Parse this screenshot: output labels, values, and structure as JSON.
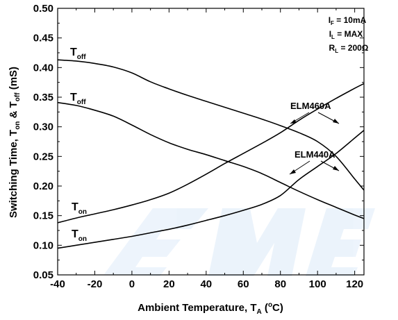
{
  "chart_data": {
    "type": "line",
    "xlabel": "Ambient Temperature, T",
    "xlabel_sub": "A",
    "xlabel_unit_pre": " (",
    "xlabel_unit_sup": "o",
    "xlabel_unit_post": "C)",
    "ylabel_parts": [
      "Switching Time, T",
      "on",
      " & T",
      "off",
      " (mS)"
    ],
    "xlim": [
      -40,
      125
    ],
    "ylim": [
      0.05,
      0.5
    ],
    "x_ticks": [
      "-40",
      "-20",
      "0",
      "20",
      "40",
      "60",
      "80",
      "100",
      "120"
    ],
    "y_ticks": [
      "0.05",
      "0.10",
      "0.15",
      "0.20",
      "0.25",
      "0.30",
      "0.35",
      "0.40",
      "0.45",
      "0.50"
    ],
    "grid": false,
    "conditions": [
      {
        "main": "I",
        "sub": "F",
        "rest": " = 10mA"
      },
      {
        "main": "I",
        "sub": "L",
        "rest": " = MAX"
      },
      {
        "main": "R",
        "sub": "L",
        "rest": " = 200Ω"
      }
    ],
    "annotations": [
      "ELM460A",
      "ELM440A"
    ],
    "curve_labels": [
      {
        "main": "T",
        "sub": "off"
      },
      {
        "main": "T",
        "sub": "off"
      },
      {
        "main": "T",
        "sub": "on"
      },
      {
        "main": "T",
        "sub": "on"
      }
    ],
    "series": [
      {
        "x": [
          -40,
          -30,
          -20,
          -10,
          0,
          10,
          20,
          30,
          40,
          50,
          60,
          70,
          80,
          90,
          100,
          110,
          120,
          125
        ],
        "y": [
          0.413,
          0.411,
          0.407,
          0.401,
          0.391,
          0.376,
          0.364,
          0.353,
          0.343,
          0.333,
          0.323,
          0.313,
          0.302,
          0.29,
          0.275,
          0.25,
          0.212,
          0.193
        ]
      },
      {
        "x": [
          -40,
          -30,
          -20,
          -10,
          0,
          10,
          20,
          30,
          40,
          50,
          60,
          70,
          80,
          90,
          100,
          110,
          120,
          125
        ],
        "y": [
          0.341,
          0.336,
          0.328,
          0.318,
          0.303,
          0.287,
          0.273,
          0.262,
          0.253,
          0.243,
          0.233,
          0.221,
          0.206,
          0.191,
          0.177,
          0.164,
          0.151,
          0.145
        ]
      },
      {
        "x": [
          -40,
          -30,
          -20,
          -10,
          0,
          10,
          20,
          30,
          40,
          50,
          60,
          70,
          80,
          90,
          100,
          110,
          120,
          125
        ],
        "y": [
          0.138,
          0.146,
          0.153,
          0.16,
          0.168,
          0.177,
          0.188,
          0.203,
          0.22,
          0.238,
          0.255,
          0.272,
          0.29,
          0.311,
          0.33,
          0.348,
          0.365,
          0.373
        ]
      },
      {
        "x": [
          -40,
          -30,
          -20,
          -10,
          0,
          10,
          20,
          30,
          40,
          50,
          60,
          70,
          80,
          90,
          100,
          110,
          120,
          125
        ],
        "y": [
          0.095,
          0.1,
          0.105,
          0.11,
          0.115,
          0.121,
          0.127,
          0.134,
          0.142,
          0.15,
          0.159,
          0.169,
          0.184,
          0.211,
          0.233,
          0.255,
          0.281,
          0.294
        ]
      }
    ]
  }
}
